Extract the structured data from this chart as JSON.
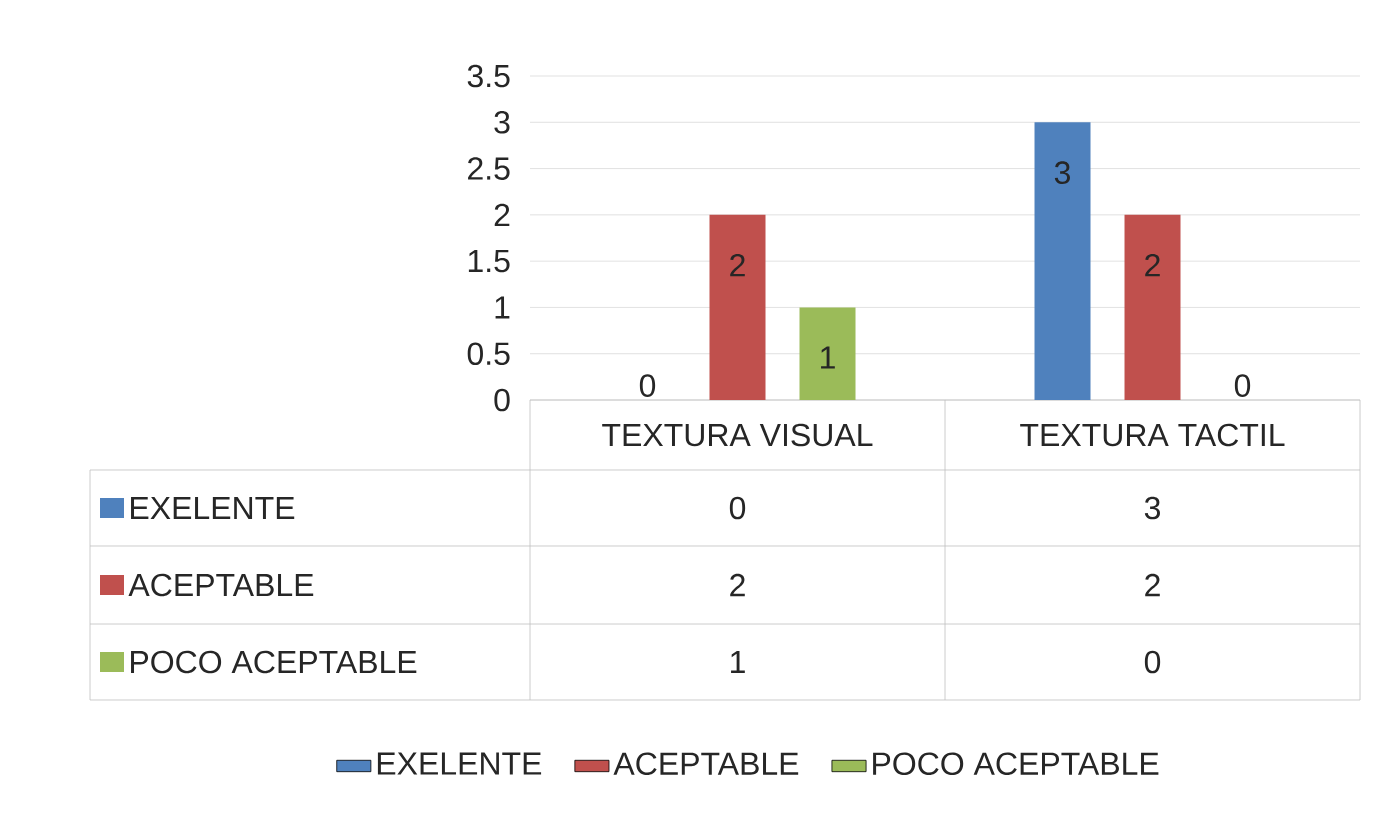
{
  "chart_data": {
    "type": "bar",
    "categories": [
      "TEXTURA VISUAL",
      "TEXTURA TACTIL"
    ],
    "series": [
      {
        "name": "EXELENTE",
        "color": "#4f81bd",
        "values": [
          0,
          3
        ],
        "value_labels": [
          "0",
          "3"
        ]
      },
      {
        "name": "ACEPTABLE",
        "color": "#c0504d",
        "values": [
          2,
          2
        ],
        "value_labels": [
          "2",
          "2"
        ]
      },
      {
        "name": "POCO ACEPTABLE",
        "color": "#9bbb59",
        "values": [
          1,
          0
        ],
        "value_labels": [
          "1",
          "0"
        ]
      }
    ],
    "ylim": [
      0,
      3.5
    ],
    "yticks": [
      0,
      0.5,
      1,
      1.5,
      2,
      2.5,
      3,
      3.5
    ],
    "grid": "y",
    "legend": "bottom"
  }
}
